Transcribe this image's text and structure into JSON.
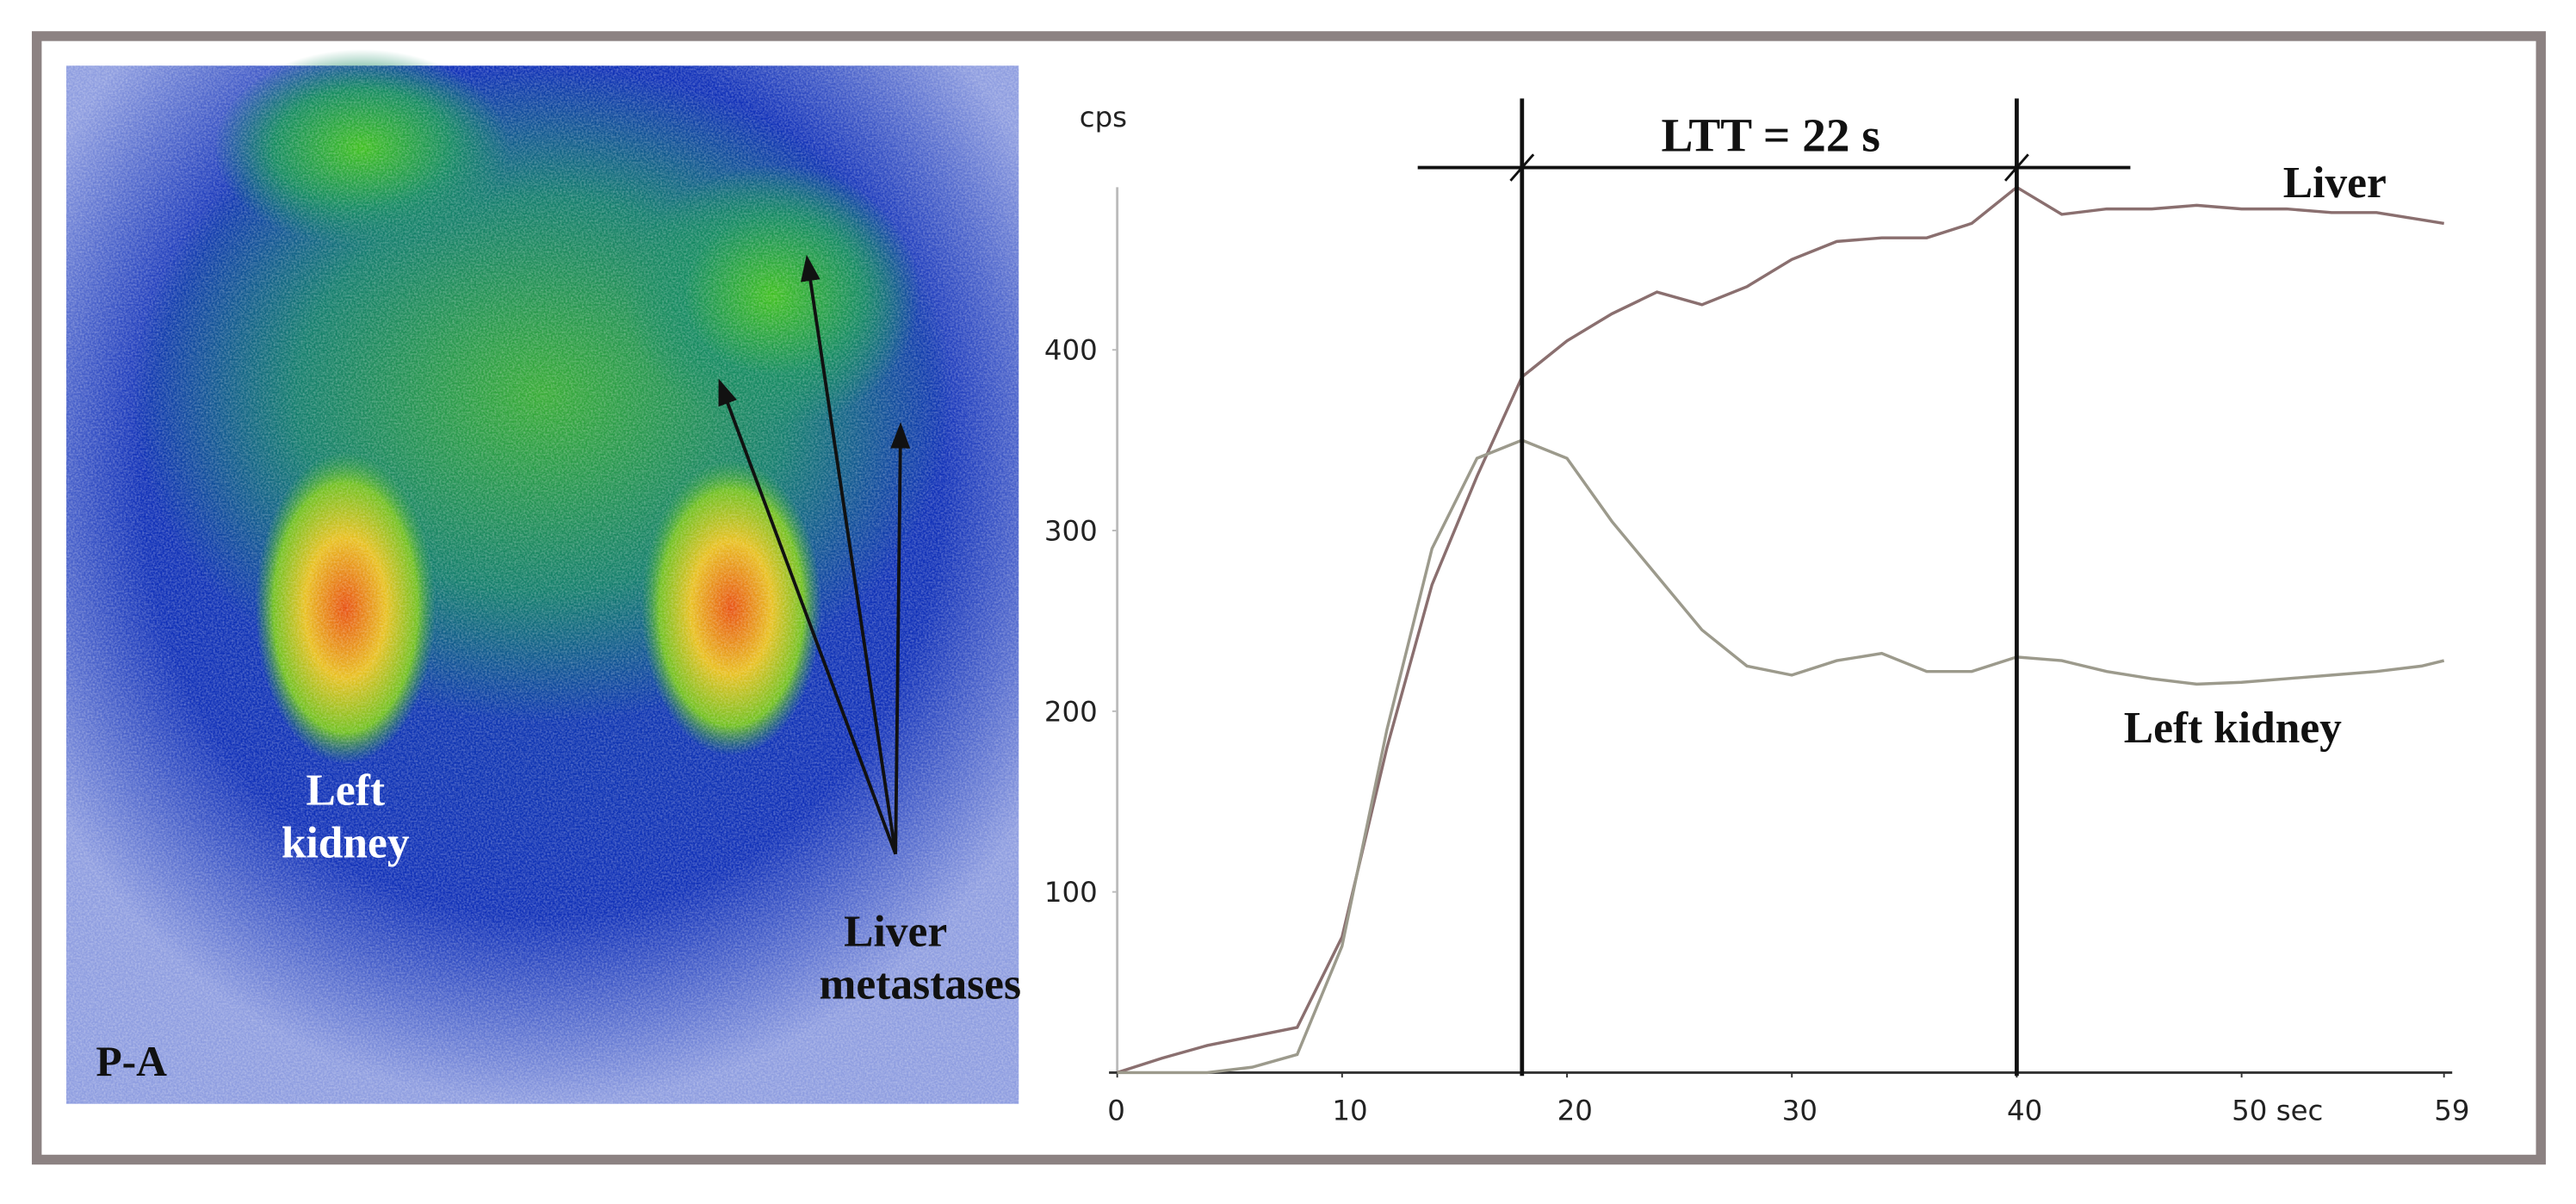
{
  "image_panel": {
    "view_label": "P-A",
    "kidney_label": [
      "Left",
      "kidney"
    ],
    "metastases_label": [
      "Liver",
      "metastases"
    ]
  },
  "chart_data": {
    "type": "line",
    "annotation": "LTT = 22 s",
    "y_label": "cps",
    "x": [
      0,
      2,
      4,
      6,
      8,
      10,
      12,
      14,
      16,
      18,
      20,
      22,
      24,
      26,
      28,
      30,
      32,
      34,
      36,
      38,
      40,
      42,
      44,
      46,
      48,
      50,
      52,
      54,
      56,
      58,
      59
    ],
    "series": [
      {
        "name": "Liver",
        "color": "#8a6f6f",
        "values": [
          0,
          8,
          15,
          20,
          25,
          75,
          180,
          270,
          330,
          385,
          405,
          420,
          432,
          425,
          435,
          450,
          460,
          462,
          462,
          470,
          490,
          475,
          478,
          478,
          480,
          478,
          478,
          476,
          476,
          472,
          470
        ]
      },
      {
        "name": "Left kidney",
        "color": "#9c9a8c",
        "values": [
          0,
          0,
          0,
          3,
          10,
          70,
          190,
          290,
          340,
          350,
          340,
          305,
          275,
          245,
          225,
          220,
          228,
          232,
          222,
          222,
          230,
          228,
          222,
          218,
          215,
          216,
          218,
          220,
          222,
          225,
          228
        ]
      }
    ],
    "vlines": [
      18,
      40
    ],
    "xlim": [
      0,
      59
    ],
    "xticks": [
      0,
      10,
      20,
      30,
      40,
      {
        "value": 50,
        "label": "50 sec"
      },
      59
    ],
    "ylim": [
      0,
      490
    ],
    "yticks": [
      100,
      200,
      300,
      400
    ]
  }
}
